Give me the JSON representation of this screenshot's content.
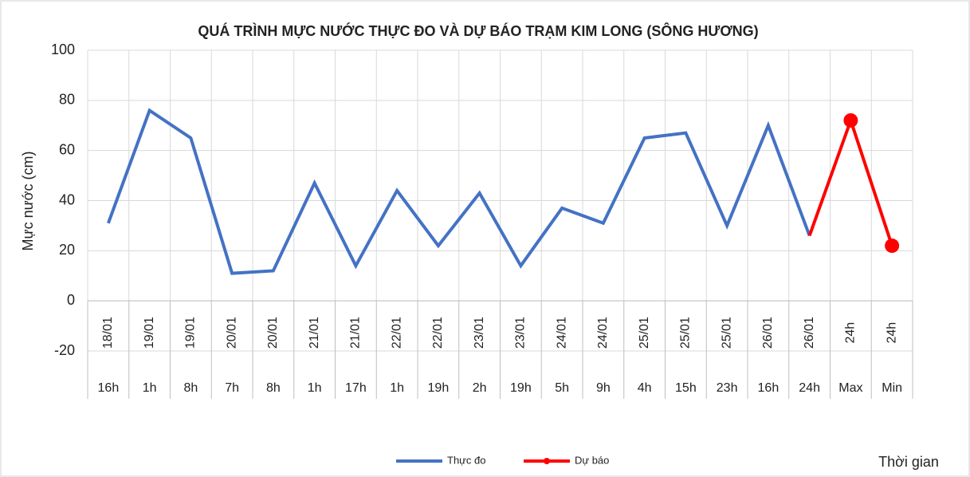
{
  "chart_data": {
    "type": "line",
    "title": "QUÁ TRÌNH MỰC NƯỚC THỰC ĐO VÀ DỰ BÁO TRẠM KIM LONG (SÔNG HƯƠNG)",
    "y_label": "Mực nước (cm)",
    "x_label": "Thời gian",
    "categories": [
      "18/01",
      "19/01",
      "19/01",
      "20/01",
      "20/01",
      "21/01",
      "21/01",
      "22/01",
      "22/01",
      "23/01",
      "23/01",
      "24/01",
      "24/01",
      "25/01",
      "25/01",
      "25/01",
      "26/01",
      "26/01",
      "24h",
      "24h"
    ],
    "sub_categories": [
      "16h",
      "1h",
      "8h",
      "7h",
      "8h",
      "1h",
      "17h",
      "1h",
      "19h",
      "2h",
      "19h",
      "5h",
      "9h",
      "4h",
      "15h",
      "23h",
      "16h",
      "24h",
      "Max",
      "Min"
    ],
    "series": [
      {
        "name": "Thực đo",
        "color": "#4472c4",
        "marker": false,
        "values": [
          31,
          76,
          65,
          11,
          12,
          47,
          14,
          44,
          22,
          43,
          14,
          37,
          31,
          65,
          67,
          30,
          70,
          26,
          null,
          null
        ]
      },
      {
        "name": "Dự báo",
        "color": "#ff0000",
        "marker": true,
        "values": [
          null,
          null,
          null,
          null,
          null,
          null,
          null,
          null,
          null,
          null,
          null,
          null,
          null,
          null,
          null,
          null,
          null,
          26,
          72,
          22
        ]
      }
    ],
    "ylim": [
      -20,
      100
    ],
    "yticks": [
      -20,
      0,
      20,
      40,
      60,
      80,
      100
    ],
    "grid": true,
    "legend": "bottom"
  }
}
